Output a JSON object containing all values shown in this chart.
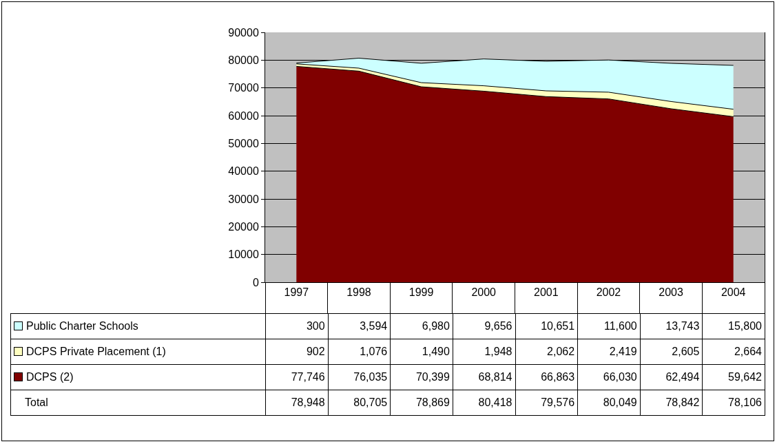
{
  "chart_data": {
    "type": "area",
    "stacked": true,
    "categories": [
      "1997",
      "1998",
      "1999",
      "2000",
      "2001",
      "2002",
      "2003",
      "2004"
    ],
    "series": [
      {
        "name": "DCPS (2)",
        "color": "#800000",
        "values": [
          77746,
          76035,
          70399,
          68814,
          66863,
          66030,
          62494,
          59642
        ],
        "value_labels": [
          "77,746",
          "76,035",
          "70,399",
          "68,814",
          "66,863",
          "66,030",
          "62,494",
          "59,642"
        ]
      },
      {
        "name": "DCPS Private Placement (1)",
        "color": "#ffffc0",
        "values": [
          902,
          1076,
          1490,
          1948,
          2062,
          2419,
          2605,
          2664
        ],
        "value_labels": [
          "902",
          "1,076",
          "1,490",
          "1,948",
          "2,062",
          "2,419",
          "2,605",
          "2,664"
        ]
      },
      {
        "name": "Public Charter Schools",
        "color": "#ccffff",
        "values": [
          300,
          3594,
          6980,
          9656,
          10651,
          11600,
          13743,
          15800
        ],
        "value_labels": [
          "300",
          "3,594",
          "6,980",
          "9,656",
          "10,651",
          "11,600",
          "13,743",
          "15,800"
        ]
      }
    ],
    "ylim": [
      0,
      90000
    ],
    "yticks": [
      0,
      10000,
      20000,
      30000,
      40000,
      50000,
      60000,
      70000,
      80000,
      90000
    ],
    "grid": "y",
    "legend": "bottom",
    "annotations": [
      "Total",
      "78,948",
      "80,705",
      "78,869",
      "80,418",
      "79,576",
      "80,049",
      "78,842",
      "78,106"
    ]
  }
}
